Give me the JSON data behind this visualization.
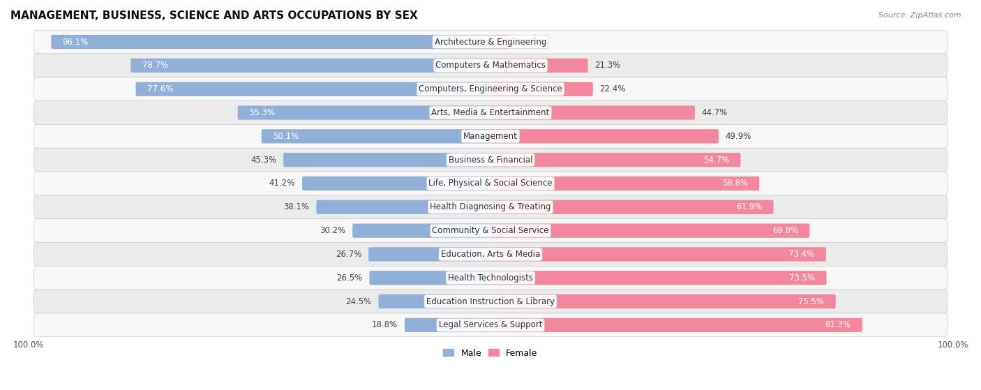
{
  "title": "MANAGEMENT, BUSINESS, SCIENCE AND ARTS OCCUPATIONS BY SEX",
  "source": "Source: ZipAtlas.com",
  "categories": [
    "Architecture & Engineering",
    "Computers & Mathematics",
    "Computers, Engineering & Science",
    "Arts, Media & Entertainment",
    "Management",
    "Business & Financial",
    "Life, Physical & Social Science",
    "Health Diagnosing & Treating",
    "Community & Social Service",
    "Education, Arts & Media",
    "Health Technologists",
    "Education Instruction & Library",
    "Legal Services & Support"
  ],
  "male_pct": [
    96.1,
    78.7,
    77.6,
    55.3,
    50.1,
    45.3,
    41.2,
    38.1,
    30.2,
    26.7,
    26.5,
    24.5,
    18.8
  ],
  "female_pct": [
    3.9,
    21.3,
    22.4,
    44.7,
    49.9,
    54.7,
    58.8,
    61.9,
    69.8,
    73.4,
    73.5,
    75.5,
    81.3
  ],
  "male_color": "#92afd7",
  "female_color": "#f3879d",
  "bar_height": 0.6,
  "row_colors": [
    "#f7f7f7",
    "#ebebeb"
  ],
  "row_edge_color": "#cccccc",
  "legend_male": "Male",
  "legend_female": "Female",
  "label_fontsize": 8.5,
  "title_fontsize": 11,
  "source_fontsize": 8
}
